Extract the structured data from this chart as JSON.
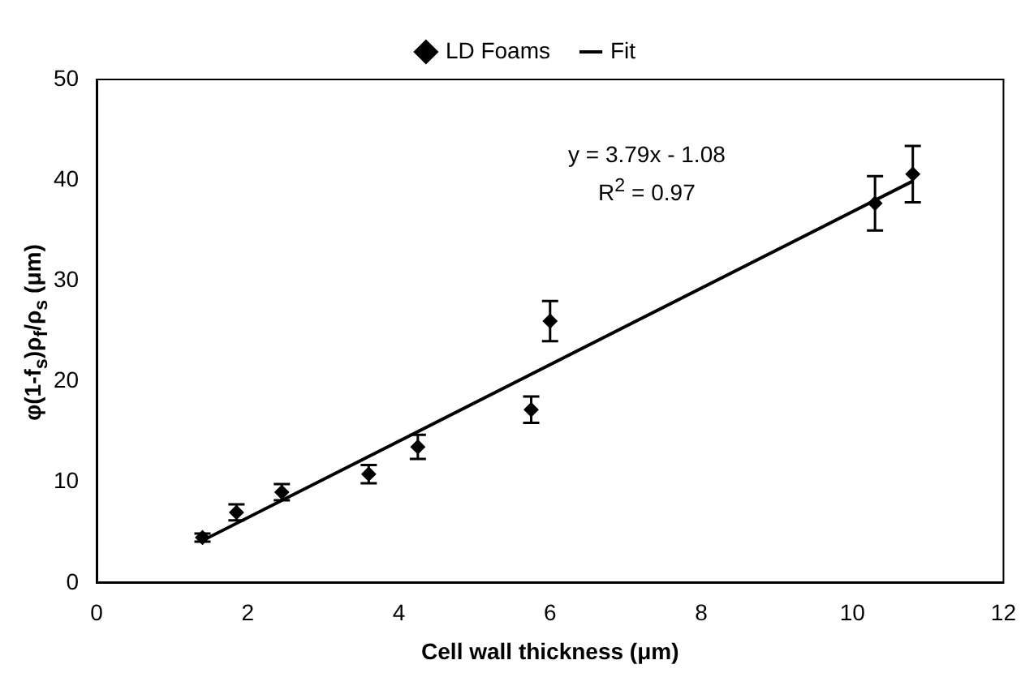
{
  "chart_data": {
    "type": "scatter",
    "xlabel": "Cell wall thickness (μm)",
    "ylabel": "φ(1-f$_{s}$)ρ$_{f}$/ρ$_{s}$ (μm)",
    "series": [
      {
        "name": "LD Foams",
        "color": "#000000",
        "marker": "diamond",
        "x": [
          1.4,
          1.85,
          2.45,
          3.6,
          4.25,
          5.75,
          6.0,
          10.3,
          10.8
        ],
        "values": [
          4.5,
          7,
          9,
          10.8,
          13.5,
          17.2,
          26,
          37.7,
          40.6
        ],
        "errors": [
          0.4,
          0.8,
          0.8,
          0.9,
          1.2,
          1.3,
          2,
          2.7,
          2.8
        ]
      },
      {
        "name": "Fit",
        "type": "line",
        "color": "#000000",
        "marker": "none",
        "line_style": "solid",
        "x": [
          1.4,
          10.8
        ],
        "values": [
          4.2,
          39.9
        ]
      }
    ],
    "annotations": [
      "y = 3.79x - 1.08",
      "R$^{2}$ = 0.97"
    ],
    "xlim": [
      0,
      12
    ],
    "xticks": [
      0,
      2,
      4,
      6,
      8,
      10,
      12
    ],
    "ylim": [
      0,
      50
    ],
    "yticks": [
      0,
      10,
      20,
      30,
      40,
      50
    ],
    "grid": false,
    "legend": "top"
  }
}
